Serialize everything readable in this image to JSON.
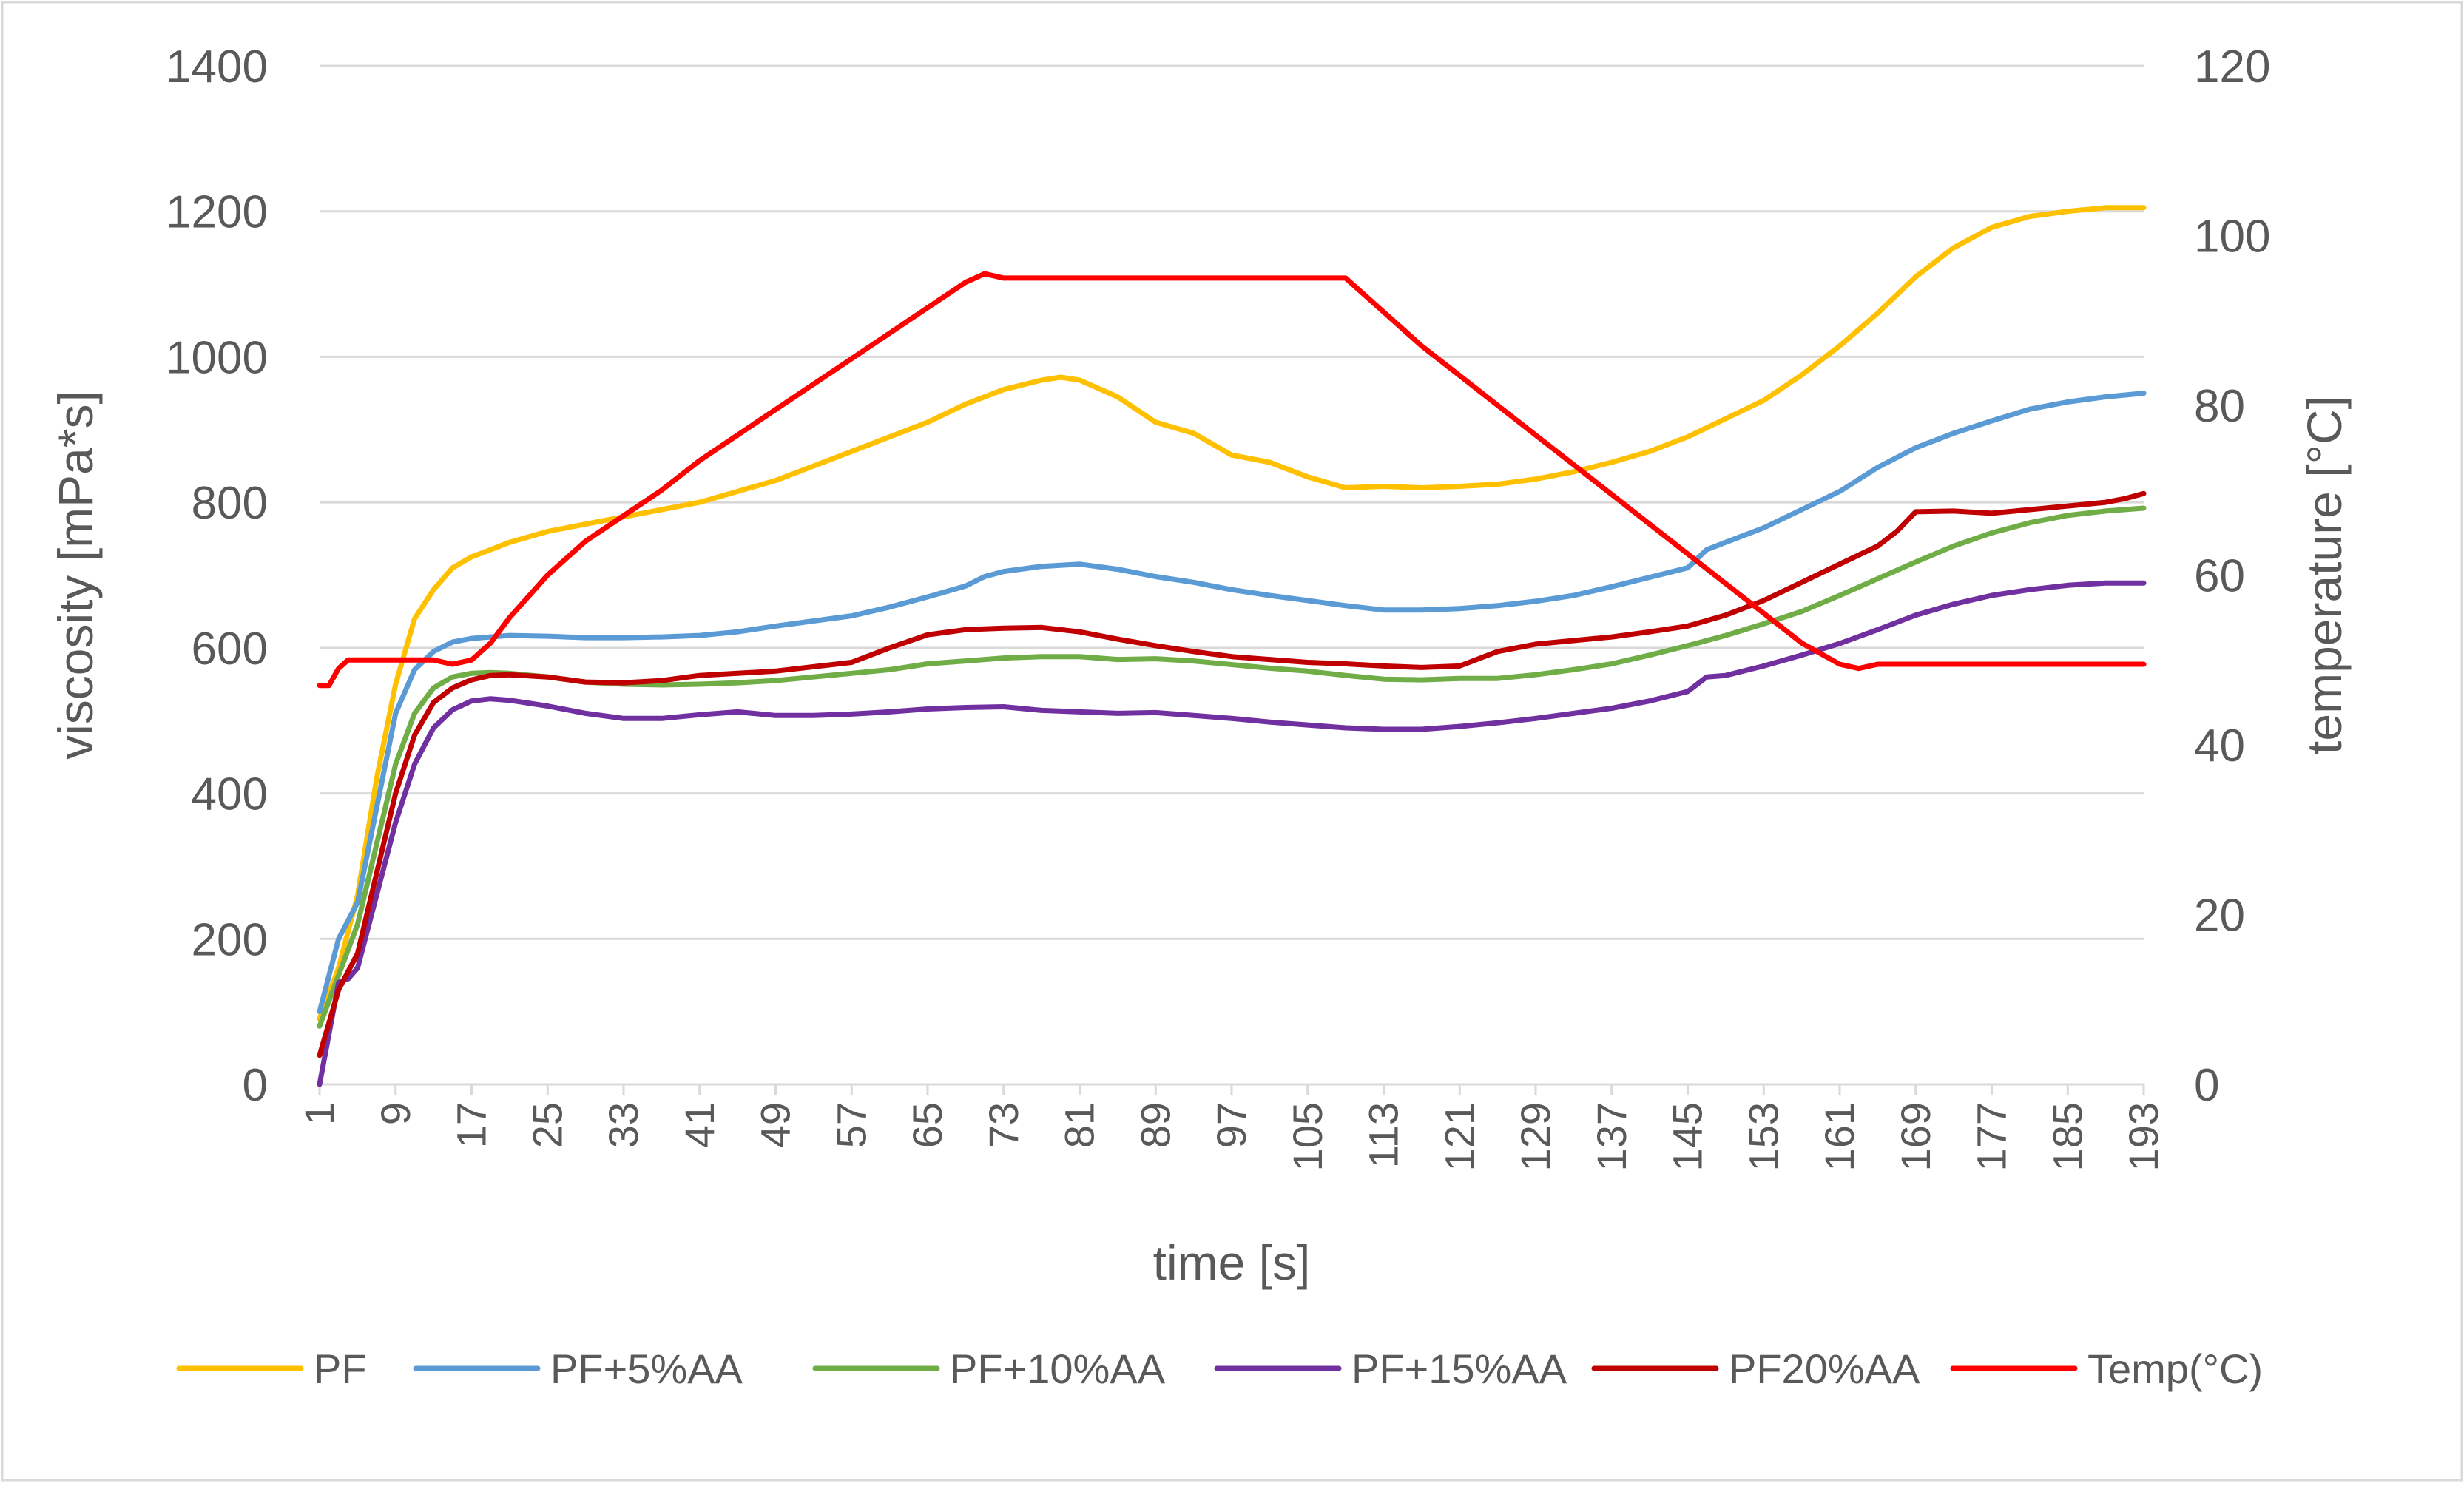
{
  "chart_data": {
    "type": "line",
    "title": "",
    "xlabel": "time [s]",
    "ylabel": "viscosity [mPa*s]",
    "y2label": "temperature [°C]",
    "ylim": [
      0,
      1400
    ],
    "y2lim": [
      0,
      120
    ],
    "yticks": [
      "0",
      "200",
      "400",
      "600",
      "800",
      "1000",
      "1200",
      "1400"
    ],
    "y2ticks": [
      "0",
      "20",
      "40",
      "60",
      "80",
      "100",
      "120"
    ],
    "x_range": [
      1,
      193
    ],
    "xticks": [
      "1",
      "9",
      "17",
      "25",
      "33",
      "41",
      "49",
      "57",
      "65",
      "73",
      "81",
      "89",
      "97",
      "105",
      "113",
      "121",
      "129",
      "137",
      "145",
      "153",
      "161",
      "169",
      "177",
      "185",
      "193"
    ],
    "legend_position": "bottom",
    "grid": "horizontal",
    "series": [
      {
        "name": "PF",
        "axis": "left",
        "color": "#FFC000",
        "x": [
          1,
          3,
          5,
          7,
          9,
          11,
          13,
          15,
          17,
          19,
          21,
          25,
          29,
          33,
          37,
          41,
          45,
          49,
          53,
          57,
          61,
          65,
          69,
          73,
          77,
          79,
          81,
          85,
          89,
          93,
          97,
          101,
          105,
          109,
          113,
          117,
          121,
          125,
          129,
          133,
          137,
          141,
          145,
          149,
          153,
          157,
          161,
          165,
          169,
          173,
          177,
          181,
          185,
          189,
          193
        ],
        "values": [
          90,
          160,
          260,
          420,
          550,
          640,
          680,
          710,
          725,
          735,
          745,
          760,
          770,
          780,
          790,
          800,
          815,
          830,
          850,
          870,
          890,
          910,
          935,
          955,
          968,
          972,
          968,
          945,
          910,
          895,
          865,
          855,
          835,
          820,
          822,
          820,
          822,
          825,
          832,
          842,
          855,
          870,
          890,
          915,
          940,
          975,
          1015,
          1060,
          1110,
          1150,
          1178,
          1193,
          1200,
          1205,
          1205
        ]
      },
      {
        "name": "PF+5%AA",
        "axis": "left",
        "color": "#5B9BD5",
        "x": [
          1,
          3,
          5,
          7,
          9,
          11,
          13,
          15,
          17,
          21,
          25,
          29,
          33,
          37,
          41,
          45,
          49,
          53,
          57,
          61,
          65,
          69,
          71,
          73,
          77,
          81,
          85,
          89,
          93,
          97,
          101,
          105,
          109,
          113,
          117,
          121,
          125,
          129,
          133,
          137,
          141,
          145,
          147,
          149,
          153,
          157,
          161,
          165,
          169,
          173,
          177,
          181,
          185,
          189,
          193
        ],
        "values": [
          100,
          200,
          250,
          380,
          510,
          570,
          595,
          608,
          613,
          617,
          616,
          614,
          614,
          615,
          617,
          622,
          630,
          637,
          644,
          656,
          670,
          685,
          698,
          705,
          712,
          715,
          708,
          698,
          690,
          680,
          672,
          665,
          658,
          652,
          652,
          654,
          658,
          664,
          672,
          684,
          697,
          710,
          735,
          745,
          765,
          790,
          815,
          848,
          875,
          895,
          912,
          928,
          938,
          945,
          950
        ]
      },
      {
        "name": "PF+10%AA",
        "axis": "left",
        "color": "#70AD47",
        "x": [
          1,
          3,
          5,
          7,
          9,
          11,
          13,
          15,
          17,
          19,
          21,
          25,
          29,
          33,
          37,
          41,
          45,
          49,
          53,
          57,
          61,
          65,
          69,
          73,
          77,
          81,
          85,
          89,
          93,
          97,
          101,
          105,
          109,
          113,
          117,
          121,
          125,
          129,
          133,
          137,
          141,
          145,
          149,
          153,
          157,
          161,
          165,
          169,
          173,
          177,
          181,
          185,
          189,
          193
        ],
        "values": [
          80,
          150,
          220,
          330,
          440,
          510,
          545,
          560,
          565,
          566,
          565,
          560,
          553,
          550,
          549,
          550,
          552,
          555,
          560,
          565,
          570,
          578,
          582,
          586,
          588,
          588,
          584,
          585,
          582,
          577,
          572,
          568,
          562,
          557,
          556,
          558,
          558,
          563,
          570,
          578,
          590,
          603,
          617,
          633,
          650,
          672,
          695,
          718,
          740,
          758,
          772,
          782,
          788,
          792
        ]
      },
      {
        "name": "PF+15%AA",
        "axis": "left",
        "color": "#7030A0",
        "x": [
          1,
          3,
          4,
          5,
          7,
          9,
          11,
          13,
          15,
          17,
          19,
          21,
          25,
          29,
          33,
          37,
          41,
          45,
          49,
          53,
          57,
          61,
          65,
          69,
          73,
          77,
          81,
          85,
          89,
          93,
          97,
          101,
          105,
          109,
          113,
          117,
          121,
          125,
          129,
          133,
          137,
          141,
          145,
          147,
          149,
          153,
          157,
          161,
          165,
          169,
          173,
          177,
          181,
          185,
          189,
          193
        ],
        "values": [
          0,
          140,
          145,
          160,
          260,
          360,
          440,
          490,
          515,
          527,
          530,
          528,
          520,
          510,
          503,
          503,
          508,
          512,
          507,
          507,
          509,
          512,
          516,
          518,
          519,
          514,
          512,
          510,
          511,
          507,
          503,
          498,
          494,
          490,
          488,
          488,
          492,
          497,
          503,
          510,
          517,
          527,
          540,
          560,
          562,
          575,
          590,
          606,
          625,
          645,
          660,
          672,
          680,
          686,
          689,
          689
        ]
      },
      {
        "name": "PF20%AA",
        "axis": "left",
        "color": "#C00000",
        "x": [
          1,
          3,
          5,
          7,
          9,
          11,
          13,
          15,
          17,
          19,
          21,
          25,
          29,
          33,
          37,
          41,
          45,
          49,
          53,
          57,
          61,
          65,
          69,
          73,
          77,
          81,
          85,
          89,
          93,
          97,
          101,
          105,
          109,
          113,
          117,
          121,
          125,
          129,
          133,
          137,
          141,
          145,
          149,
          153,
          157,
          161,
          165,
          167,
          169,
          173,
          177,
          181,
          185,
          189,
          191,
          193
        ],
        "values": [
          40,
          130,
          180,
          290,
          400,
          480,
          525,
          545,
          556,
          562,
          563,
          560,
          553,
          552,
          555,
          562,
          565,
          568,
          574,
          580,
          600,
          618,
          625,
          627,
          628,
          622,
          612,
          603,
          595,
          588,
          584,
          580,
          578,
          575,
          573,
          575,
          595,
          605,
          610,
          615,
          622,
          630,
          645,
          665,
          690,
          715,
          740,
          760,
          787,
          788,
          785,
          790,
          795,
          800,
          805,
          812
        ]
      },
      {
        "name": "Temp(°C)",
        "axis": "right",
        "color": "#FF0000",
        "x": [
          1,
          2,
          3,
          4,
          5,
          7,
          9,
          11,
          13,
          15,
          17,
          19,
          21,
          25,
          29,
          33,
          37,
          41,
          45,
          49,
          53,
          57,
          61,
          65,
          69,
          71,
          73,
          77,
          81,
          89,
          97,
          101,
          105,
          109,
          113,
          117,
          121,
          125,
          129,
          133,
          137,
          141,
          145,
          149,
          153,
          157,
          161,
          163,
          165,
          167,
          169,
          173,
          181,
          189,
          193
        ],
        "values": [
          47,
          47,
          49,
          50,
          50,
          50,
          50,
          50,
          50,
          49.5,
          50,
          52,
          55,
          60,
          64,
          67,
          70,
          73.5,
          76.5,
          79.5,
          82.5,
          85.5,
          88.5,
          91.5,
          94.5,
          95.5,
          95,
          95,
          95,
          95,
          95,
          95,
          95,
          95,
          91,
          87,
          83.5,
          80,
          76.5,
          73,
          69.5,
          66,
          62.5,
          59,
          55.5,
          52,
          49.5,
          49,
          49.5,
          49.5,
          49.5,
          49.5,
          49.5,
          49.5,
          49.5
        ]
      }
    ]
  }
}
